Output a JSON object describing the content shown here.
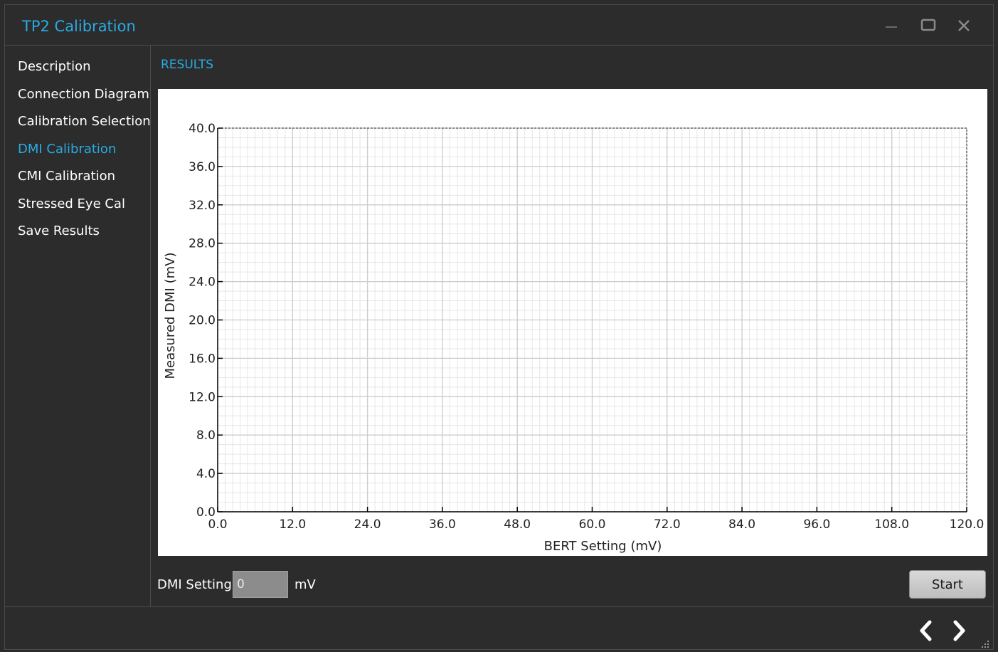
{
  "window": {
    "title": "TP2 Calibration",
    "controls": [
      "minimize-icon",
      "maximize-icon",
      "close-icon"
    ]
  },
  "sidebar": {
    "items": [
      {
        "label": "Description",
        "active": false
      },
      {
        "label": "Connection Diagram",
        "active": false
      },
      {
        "label": "Calibration Selection",
        "active": false
      },
      {
        "label": "DMI Calibration",
        "active": true
      },
      {
        "label": "CMI Calibration",
        "active": false
      },
      {
        "label": "Stressed Eye Cal",
        "active": false
      },
      {
        "label": "Save Results",
        "active": false
      }
    ]
  },
  "main": {
    "section_title": "RESULTS",
    "dmi_setting_label": "DMI Setting",
    "dmi_setting_value": "0",
    "dmi_unit": "mV",
    "start_label": "Start"
  },
  "footer": {
    "icons": [
      "chevron-left-icon",
      "chevron-right-icon",
      "resize-grip-icon"
    ]
  },
  "colors": {
    "accent": "#29abe2",
    "background": "#2c2c2c",
    "grid_major": "#cccccc",
    "grid_minor": "#e6e6e6"
  },
  "chart_data": {
    "type": "scatter",
    "title": "",
    "xlabel": "BERT Setting (mV)",
    "ylabel": "Measured DMI (mV)",
    "xlim": [
      0,
      120
    ],
    "ylim": [
      0,
      40
    ],
    "x_ticks": [
      "0.0",
      "12.0",
      "24.0",
      "36.0",
      "48.0",
      "60.0",
      "72.0",
      "84.0",
      "96.0",
      "108.0",
      "120.0"
    ],
    "y_ticks": [
      "0.0",
      "4.0",
      "8.0",
      "12.0",
      "16.0",
      "20.0",
      "24.0",
      "28.0",
      "32.0",
      "36.0",
      "40.0"
    ],
    "grid": true,
    "series": []
  }
}
